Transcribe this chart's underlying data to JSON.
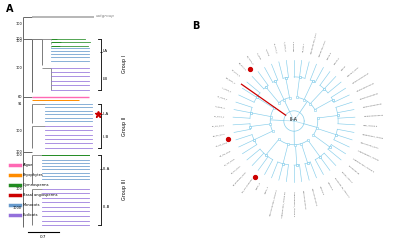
{
  "panel_A": {
    "title": "A",
    "legend": [
      {
        "label": "Algae",
        "color": "#FF69B4"
      },
      {
        "label": "Bryophytes",
        "color": "#FF8C00"
      },
      {
        "label": "Gymnosperms",
        "color": "#228B22"
      },
      {
        "label": "Basal angiosperms",
        "color": "#CC0000"
      },
      {
        "label": "Monocots",
        "color": "#6699CC"
      },
      {
        "label": "Eudicots",
        "color": "#9370DB"
      }
    ],
    "scale_bar": "0.7",
    "outgroup_label": "outgroup",
    "star_color": "#CC0000"
  },
  "panel_B": {
    "title": "B",
    "center_label": "II-A",
    "branch_color": "#87CEEB",
    "red_color": "#CC0000",
    "label_color": "#555555"
  },
  "background": "#FFFFFF",
  "fig_width": 4.0,
  "fig_height": 2.42,
  "dpi": 100
}
